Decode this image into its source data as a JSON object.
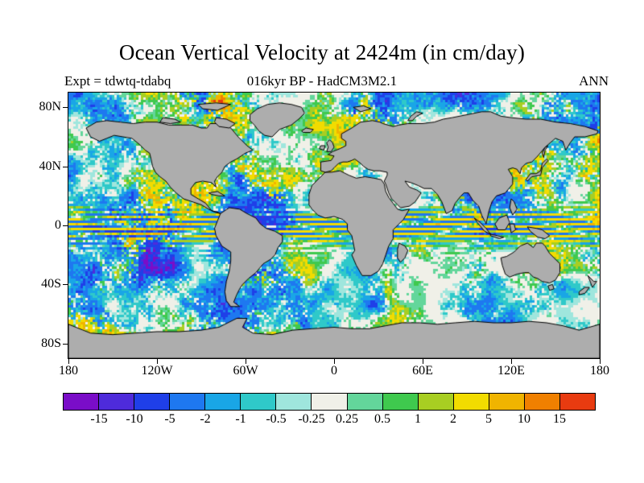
{
  "title": "Ocean Vertical Velocity at 2424m (in cm/day)",
  "header": {
    "experiment": "Expt = tdwtq-tdabq",
    "period": "016kyr BP - HadCM3M2.1",
    "season": "ANN"
  },
  "map": {
    "land_color": "#adadad",
    "coastline_color": "#000000",
    "background_color": "#ffffff"
  },
  "colorbar": {
    "tick_labels": [
      "-15",
      "-10",
      "-5",
      "-2",
      "-1",
      "-0.5",
      "-0.25",
      "0.25",
      "0.5",
      "1",
      "2",
      "5",
      "10",
      "15"
    ],
    "colors": [
      "#7a0dc8",
      "#4e2bdb",
      "#1f3fe8",
      "#1e78f0",
      "#19a6e6",
      "#2fc9c9",
      "#9fe6dd",
      "#f0f0e8",
      "#63d69b",
      "#3fc94e",
      "#a8ce22",
      "#f2dc00",
      "#f0b400",
      "#f08000",
      "#e83b10"
    ]
  },
  "chart_data": {
    "type": "heatmap",
    "title": "Ocean Vertical Velocity at 2424m (in cm/day)",
    "variable": "ocean vertical velocity",
    "depth": "2424m",
    "units": "cm/day",
    "experiment": "tdwtq-tdabq",
    "dataset": "016kyr BP - HadCM3M2.1",
    "season": "ANN",
    "projection": "equirectangular",
    "x_axis": {
      "label": "longitude",
      "ticks": [
        {
          "label": "180",
          "lon": -180
        },
        {
          "label": "120W",
          "lon": -120
        },
        {
          "label": "60W",
          "lon": -60
        },
        {
          "label": "0",
          "lon": 0
        },
        {
          "label": "60E",
          "lon": 60
        },
        {
          "label": "120E",
          "lon": 120
        },
        {
          "label": "180",
          "lon": 180
        }
      ]
    },
    "y_axis": {
      "label": "latitude",
      "ticks": [
        {
          "label": "80N",
          "lat": 80
        },
        {
          "label": "40N",
          "lat": 40
        },
        {
          "label": "0",
          "lat": 0
        },
        {
          "label": "40S",
          "lat": -40
        },
        {
          "label": "80S",
          "lat": -80
        }
      ]
    },
    "levels": [
      -15,
      -10,
      -5,
      -2,
      -1,
      -0.5,
      -0.25,
      0.25,
      0.5,
      1,
      2,
      5,
      10,
      15
    ],
    "legend_position": "bottom",
    "grid": false,
    "notes": "Filled field over oceans binned into the 15-color scale; land masked gray with black coastlines."
  }
}
